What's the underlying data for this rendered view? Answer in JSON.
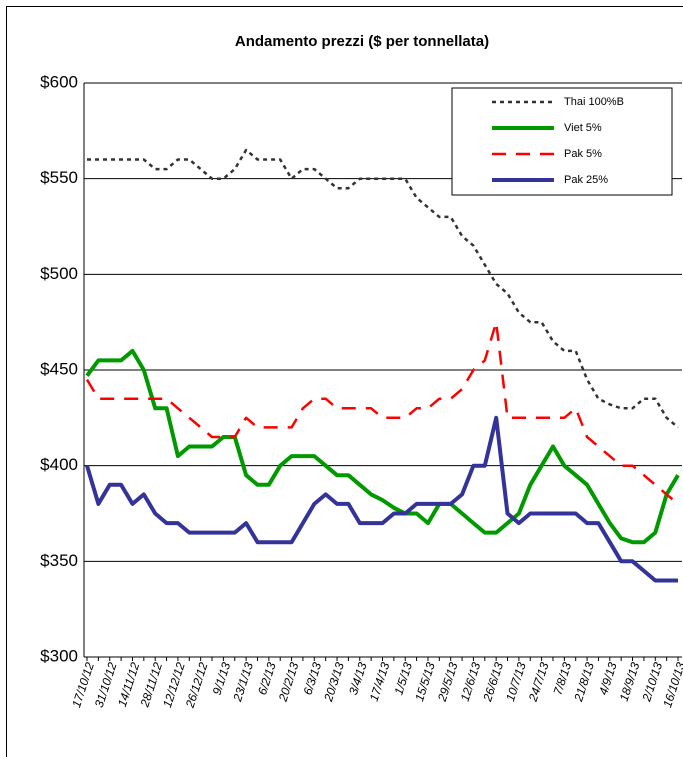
{
  "chart_data": {
    "type": "line",
    "title": "Andamento prezzi ($ per tonnellata)",
    "categories": [
      "17/10/12",
      null,
      "31/10/12",
      null,
      "14/11/12",
      null,
      "28/11/12",
      null,
      "12/12/12",
      null,
      "26/12/12",
      null,
      "9/1/13",
      null,
      "23/1/13",
      null,
      "6/2/13",
      null,
      "20/2/13",
      null,
      "6/3/13",
      null,
      "20/3/13",
      null,
      "3/4/13",
      null,
      "17/4/13",
      null,
      "1/5/13",
      null,
      "15/5/13",
      null,
      "29/5/13",
      null,
      "12/6/13",
      null,
      "26/6/13",
      null,
      "10/7/13",
      null,
      "24/7/13",
      null,
      "7/8/13",
      null,
      "21/8/13",
      null,
      "4/9/13",
      null,
      "18/9/13",
      null,
      "2/10/13",
      null,
      "16/10/13"
    ],
    "series": [
      {
        "name": "Thai 100%B",
        "color": "#333333",
        "dash": "dotted",
        "values": [
          560,
          560,
          560,
          560,
          560,
          560,
          555,
          555,
          560,
          560,
          555,
          550,
          550,
          555,
          565,
          560,
          560,
          560,
          550,
          555,
          555,
          550,
          545,
          545,
          550,
          550,
          550,
          550,
          550,
          540,
          535,
          530,
          530,
          520,
          515,
          505,
          495,
          490,
          480,
          475,
          475,
          465,
          460,
          460,
          445,
          435,
          432,
          430,
          430,
          435,
          435,
          425,
          420
        ]
      },
      {
        "name": "Viet 5%",
        "color": "#009900",
        "dash": "solid",
        "values": [
          447,
          455,
          455,
          455,
          460,
          450,
          430,
          430,
          405,
          410,
          410,
          410,
          415,
          415,
          395,
          390,
          390,
          400,
          405,
          405,
          405,
          400,
          395,
          395,
          390,
          385,
          382,
          378,
          375,
          375,
          370,
          380,
          380,
          375,
          370,
          365,
          365,
          370,
          375,
          390,
          400,
          410,
          400,
          395,
          390,
          380,
          370,
          362,
          360,
          360,
          365,
          385,
          395
        ]
      },
      {
        "name": "Pak 5%",
        "color": "#ff0000",
        "dash": "dashed",
        "values": [
          445,
          435,
          435,
          435,
          435,
          435,
          435,
          435,
          430,
          425,
          420,
          415,
          415,
          415,
          425,
          420,
          420,
          420,
          420,
          430,
          435,
          435,
          430,
          430,
          430,
          430,
          425,
          425,
          425,
          430,
          430,
          435,
          435,
          440,
          450,
          455,
          475,
          425,
          425,
          425,
          425,
          425,
          425,
          430,
          415,
          410,
          405,
          400,
          400,
          395,
          390,
          385,
          380
        ]
      },
      {
        "name": "Pak 25%",
        "color": "#333399",
        "dash": "solid",
        "values": [
          400,
          380,
          390,
          390,
          380,
          385,
          375,
          370,
          370,
          365,
          365,
          365,
          365,
          365,
          370,
          360,
          360,
          360,
          360,
          370,
          380,
          385,
          380,
          380,
          370,
          370,
          370,
          375,
          375,
          380,
          380,
          380,
          380,
          385,
          400,
          400,
          425,
          375,
          370,
          375,
          375,
          375,
          375,
          375,
          370,
          370,
          360,
          350,
          350,
          345,
          340,
          340,
          340
        ]
      }
    ],
    "ylim": [
      300,
      600
    ],
    "yticks": [
      {
        "value": 300,
        "label": "$300"
      },
      {
        "value": 350,
        "label": "$350"
      },
      {
        "value": 400,
        "label": "$400"
      },
      {
        "value": 450,
        "label": "$450"
      },
      {
        "value": 500,
        "label": "$500"
      },
      {
        "value": 550,
        "label": "$550"
      },
      {
        "value": 600,
        "label": "$600"
      }
    ],
    "grid": true,
    "legend": "top-right"
  }
}
